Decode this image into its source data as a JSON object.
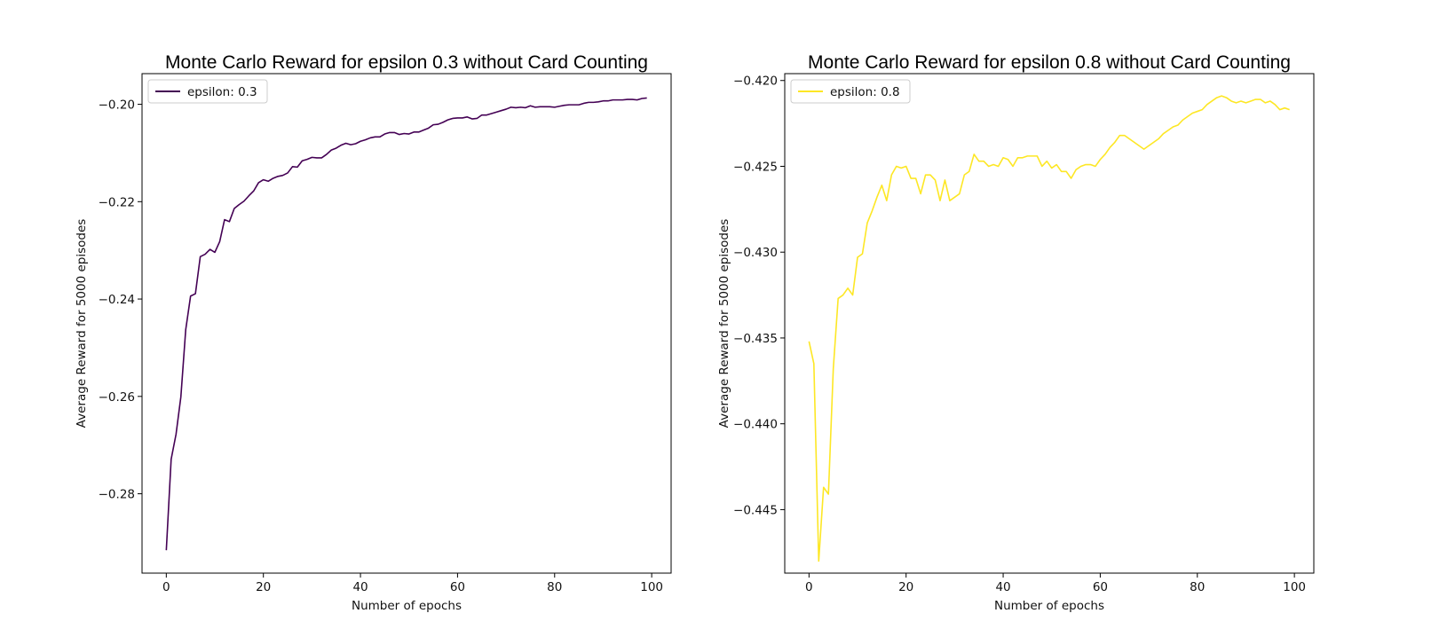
{
  "chart_data": [
    {
      "type": "line",
      "title": "Monte Carlo Reward for epsilon 0.3 without Card Counting",
      "xlabel": "Number of epochs",
      "ylabel": "Average Reward for 5000 episodes",
      "xlim": [
        -5,
        104
      ],
      "ylim": [
        -0.2963,
        -0.1937
      ],
      "xticks": [
        0,
        20,
        40,
        60,
        80,
        100
      ],
      "xtick_labels": [
        "0",
        "20",
        "40",
        "60",
        "80",
        "100"
      ],
      "yticks": [
        -0.28,
        -0.26,
        -0.24,
        -0.22,
        -0.2
      ],
      "ytick_labels": [
        "−0.28",
        "−0.26",
        "−0.24",
        "−0.22",
        "−0.20"
      ],
      "legend": "top-left",
      "grid": false,
      "series": [
        {
          "name": "epsilon: 0.3",
          "color": "#440154",
          "x": [
            0,
            1,
            2,
            3,
            4,
            5,
            6,
            7,
            8,
            9,
            10,
            11,
            12,
            13,
            14,
            15,
            16,
            17,
            18,
            19,
            20,
            21,
            22,
            23,
            24,
            25,
            26,
            27,
            28,
            29,
            30,
            31,
            32,
            33,
            34,
            35,
            36,
            37,
            38,
            39,
            40,
            41,
            42,
            43,
            44,
            45,
            46,
            47,
            48,
            49,
            50,
            51,
            52,
            53,
            54,
            55,
            56,
            57,
            58,
            59,
            60,
            61,
            62,
            63,
            64,
            65,
            66,
            67,
            68,
            69,
            70,
            71,
            72,
            73,
            74,
            75,
            76,
            77,
            78,
            79,
            80,
            81,
            82,
            83,
            84,
            85,
            86,
            87,
            88,
            89,
            90,
            91,
            92,
            93,
            94,
            95,
            96,
            97,
            98,
            99
          ],
          "values": [
            -0.2916,
            -0.2729,
            -0.2678,
            -0.2601,
            -0.2463,
            -0.2394,
            -0.2389,
            -0.2313,
            -0.2308,
            -0.2298,
            -0.2304,
            -0.2282,
            -0.2237,
            -0.2241,
            -0.2214,
            -0.2206,
            -0.2199,
            -0.2188,
            -0.2178,
            -0.2161,
            -0.2155,
            -0.2158,
            -0.2152,
            -0.2148,
            -0.2146,
            -0.2141,
            -0.2128,
            -0.2129,
            -0.2116,
            -0.2113,
            -0.2109,
            -0.211,
            -0.211,
            -0.2103,
            -0.2094,
            -0.209,
            -0.2084,
            -0.208,
            -0.2083,
            -0.2081,
            -0.2076,
            -0.2073,
            -0.2069,
            -0.2067,
            -0.2067,
            -0.2061,
            -0.2058,
            -0.2058,
            -0.2062,
            -0.206,
            -0.2061,
            -0.2057,
            -0.2057,
            -0.2053,
            -0.2049,
            -0.2042,
            -0.2041,
            -0.2037,
            -0.2032,
            -0.2029,
            -0.2028,
            -0.2028,
            -0.2026,
            -0.203,
            -0.2029,
            -0.2022,
            -0.2022,
            -0.2019,
            -0.2016,
            -0.2013,
            -0.201,
            -0.2006,
            -0.2007,
            -0.2006,
            -0.2007,
            -0.2003,
            -0.2006,
            -0.2005,
            -0.2005,
            -0.2005,
            -0.2006,
            -0.2004,
            -0.2002,
            -0.2001,
            -0.2001,
            -0.2001,
            -0.1998,
            -0.1996,
            -0.1996,
            -0.1995,
            -0.1993,
            -0.1993,
            -0.1991,
            -0.1991,
            -0.1991,
            -0.199,
            -0.199,
            -0.1991,
            -0.1988,
            -0.1987
          ]
        }
      ]
    },
    {
      "type": "line",
      "title": "Monte Carlo Reward for epsilon 0.8 without Card Counting",
      "xlabel": "Number of epochs",
      "ylabel": "Average Reward for 5000 episodes",
      "xlim": [
        -5,
        104
      ],
      "ylim": [
        -0.4487,
        -0.4196
      ],
      "xticks": [
        0,
        20,
        40,
        60,
        80,
        100
      ],
      "xtick_labels": [
        "0",
        "20",
        "40",
        "60",
        "80",
        "100"
      ],
      "yticks": [
        -0.445,
        -0.44,
        -0.435,
        -0.43,
        -0.425,
        -0.42
      ],
      "ytick_labels": [
        "−0.445",
        "−0.440",
        "−0.435",
        "−0.430",
        "−0.425",
        "−0.420"
      ],
      "legend": "top-left",
      "grid": false,
      "series": [
        {
          "name": "epsilon: 0.8",
          "color": "#fde725",
          "x": [
            0,
            1,
            2,
            3,
            4,
            5,
            6,
            7,
            8,
            9,
            10,
            11,
            12,
            13,
            14,
            15,
            16,
            17,
            18,
            19,
            20,
            21,
            22,
            23,
            24,
            25,
            26,
            27,
            28,
            29,
            30,
            31,
            32,
            33,
            34,
            35,
            36,
            37,
            38,
            39,
            40,
            41,
            42,
            43,
            44,
            45,
            46,
            47,
            48,
            49,
            50,
            51,
            52,
            53,
            54,
            55,
            56,
            57,
            58,
            59,
            60,
            61,
            62,
            63,
            64,
            65,
            66,
            67,
            68,
            69,
            70,
            71,
            72,
            73,
            74,
            75,
            76,
            77,
            78,
            79,
            80,
            81,
            82,
            83,
            84,
            85,
            86,
            87,
            88,
            89,
            90,
            91,
            92,
            93,
            94,
            95,
            96,
            97,
            98,
            99
          ],
          "values": [
            -0.4352,
            -0.4365,
            -0.448,
            -0.4437,
            -0.4441,
            -0.4368,
            -0.4327,
            -0.4325,
            -0.4321,
            -0.4325,
            -0.4303,
            -0.4301,
            -0.4283,
            -0.4276,
            -0.4268,
            -0.4261,
            -0.427,
            -0.4255,
            -0.425,
            -0.4251,
            -0.425,
            -0.4257,
            -0.4257,
            -0.4266,
            -0.4255,
            -0.4255,
            -0.4258,
            -0.427,
            -0.4258,
            -0.427,
            -0.4268,
            -0.4266,
            -0.4255,
            -0.4253,
            -0.4243,
            -0.4247,
            -0.4247,
            -0.425,
            -0.4249,
            -0.425,
            -0.4245,
            -0.4246,
            -0.425,
            -0.4245,
            -0.4245,
            -0.4244,
            -0.4244,
            -0.4244,
            -0.425,
            -0.4247,
            -0.4251,
            -0.4249,
            -0.4253,
            -0.4253,
            -0.4257,
            -0.4252,
            -0.425,
            -0.4249,
            -0.4249,
            -0.425,
            -0.4246,
            -0.4243,
            -0.4239,
            -0.4236,
            -0.4232,
            -0.4232,
            -0.4234,
            -0.4236,
            -0.4238,
            -0.424,
            -0.4238,
            -0.4236,
            -0.4234,
            -0.4231,
            -0.4229,
            -0.4227,
            -0.4226,
            -0.4223,
            -0.4221,
            -0.4219,
            -0.4218,
            -0.4217,
            -0.4214,
            -0.4212,
            -0.421,
            -0.4209,
            -0.421,
            -0.4212,
            -0.4213,
            -0.4212,
            -0.4213,
            -0.4212,
            -0.4211,
            -0.4211,
            -0.4213,
            -0.4212,
            -0.4214,
            -0.4217,
            -0.4216,
            -0.4217
          ]
        }
      ]
    }
  ]
}
